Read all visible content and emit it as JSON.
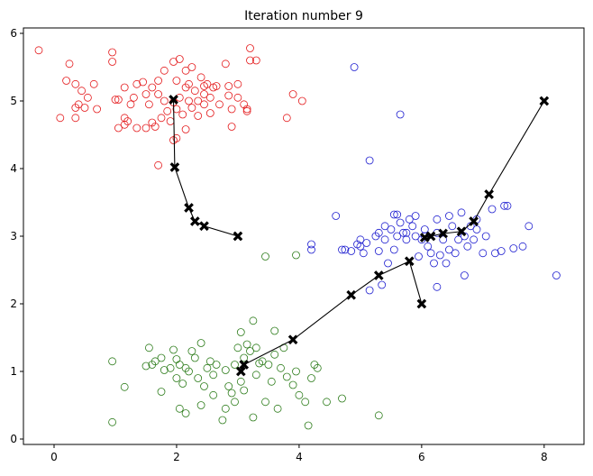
{
  "chart_data": {
    "type": "scatter",
    "title": "Iteration number 9",
    "xlabel": "",
    "ylabel": "",
    "xlim": [
      -0.5,
      8.65
    ],
    "ylim": [
      -0.08,
      6.08
    ],
    "x_ticks": [
      0,
      2,
      4,
      6,
      8
    ],
    "y_ticks": [
      0,
      1,
      2,
      3,
      4,
      5,
      6
    ],
    "grid": false,
    "legend": "none",
    "series": [
      {
        "color": "#e41a1c",
        "marker": "open-circle",
        "points": [
          [
            -0.25,
            5.75
          ],
          [
            0.25,
            5.55
          ],
          [
            0.2,
            5.3
          ],
          [
            0.35,
            5.25
          ],
          [
            0.45,
            5.15
          ],
          [
            0.55,
            5.05
          ],
          [
            0.4,
            4.95
          ],
          [
            0.35,
            4.9
          ],
          [
            0.1,
            4.75
          ],
          [
            0.35,
            4.75
          ],
          [
            0.5,
            4.9
          ],
          [
            0.65,
            5.25
          ],
          [
            0.7,
            4.88
          ],
          [
            0.95,
            5.72
          ],
          [
            0.95,
            5.58
          ],
          [
            1.0,
            5.02
          ],
          [
            1.05,
            5.02
          ],
          [
            1.05,
            4.6
          ],
          [
            1.15,
            5.2
          ],
          [
            1.15,
            4.75
          ],
          [
            1.2,
            4.7
          ],
          [
            1.25,
            4.95
          ],
          [
            1.3,
            5.05
          ],
          [
            1.35,
            5.25
          ],
          [
            1.35,
            4.6
          ],
          [
            1.45,
            5.28
          ],
          [
            1.5,
            5.1
          ],
          [
            1.55,
            4.95
          ],
          [
            1.6,
            5.2
          ],
          [
            1.6,
            4.68
          ],
          [
            1.65,
            4.62
          ],
          [
            1.7,
            5.3
          ],
          [
            1.7,
            5.1
          ],
          [
            1.75,
            4.75
          ],
          [
            1.8,
            5.45
          ],
          [
            1.8,
            5.0
          ],
          [
            1.85,
            4.85
          ],
          [
            1.9,
            4.7
          ],
          [
            1.95,
            4.98
          ],
          [
            1.95,
            5.58
          ],
          [
            2.0,
            5.3
          ],
          [
            2.0,
            4.88
          ],
          [
            2.05,
            5.62
          ],
          [
            2.05,
            5.05
          ],
          [
            2.1,
            4.8
          ],
          [
            2.15,
            4.58
          ],
          [
            2.15,
            5.45
          ],
          [
            2.2,
            5.25
          ],
          [
            2.2,
            5.0
          ],
          [
            2.25,
            4.9
          ],
          [
            2.25,
            5.5
          ],
          [
            2.3,
            5.15
          ],
          [
            2.35,
            4.78
          ],
          [
            2.4,
            5.35
          ],
          [
            2.45,
            5.22
          ],
          [
            2.45,
            4.95
          ],
          [
            2.5,
            5.25
          ],
          [
            2.55,
            5.05
          ],
          [
            2.55,
            4.82
          ],
          [
            2.6,
            5.2
          ],
          [
            2.65,
            5.22
          ],
          [
            2.7,
            4.95
          ],
          [
            2.8,
            5.55
          ],
          [
            2.85,
            5.22
          ],
          [
            2.85,
            5.08
          ],
          [
            2.9,
            4.88
          ],
          [
            2.9,
            4.62
          ],
          [
            3.0,
            5.25
          ],
          [
            3.0,
            5.05
          ],
          [
            3.1,
            4.95
          ],
          [
            3.15,
            4.85
          ],
          [
            3.15,
            4.88
          ],
          [
            3.2,
            5.6
          ],
          [
            3.2,
            5.78
          ],
          [
            3.3,
            5.6
          ],
          [
            3.8,
            4.75
          ],
          [
            3.9,
            5.1
          ],
          [
            4.05,
            5.0
          ],
          [
            1.7,
            4.05
          ],
          [
            1.95,
            4.42
          ],
          [
            2.0,
            4.45
          ],
          [
            1.5,
            4.6
          ],
          [
            1.15,
            4.65
          ],
          [
            2.35,
            5.0
          ],
          [
            2.45,
            5.1
          ],
          [
            2.15,
            5.2
          ]
        ]
      },
      {
        "color": "#1f1fd0",
        "marker": "open-circle",
        "points": [
          [
            4.9,
            5.5
          ],
          [
            5.65,
            4.8
          ],
          [
            5.15,
            4.12
          ],
          [
            4.6,
            3.3
          ],
          [
            4.2,
            2.88
          ],
          [
            4.2,
            2.8
          ],
          [
            4.7,
            2.8
          ],
          [
            4.75,
            2.8
          ],
          [
            4.85,
            2.78
          ],
          [
            4.95,
            2.88
          ],
          [
            5.0,
            2.95
          ],
          [
            5.05,
            2.75
          ],
          [
            5.1,
            2.9
          ],
          [
            5.15,
            2.2
          ],
          [
            5.25,
            3.0
          ],
          [
            5.3,
            2.78
          ],
          [
            5.35,
            2.28
          ],
          [
            5.4,
            3.15
          ],
          [
            5.4,
            2.95
          ],
          [
            5.45,
            2.6
          ],
          [
            5.5,
            3.1
          ],
          [
            5.55,
            3.32
          ],
          [
            5.55,
            2.8
          ],
          [
            5.6,
            3.0
          ],
          [
            5.6,
            3.32
          ],
          [
            5.65,
            3.2
          ],
          [
            5.7,
            3.05
          ],
          [
            5.75,
            2.95
          ],
          [
            5.8,
            3.25
          ],
          [
            5.85,
            3.15
          ],
          [
            5.9,
            3.0
          ],
          [
            5.9,
            3.3
          ],
          [
            5.95,
            2.7
          ],
          [
            6.0,
            2.95
          ],
          [
            6.05,
            3.1
          ],
          [
            6.1,
            2.85
          ],
          [
            6.15,
            2.75
          ],
          [
            6.2,
            2.6
          ],
          [
            6.25,
            3.25
          ],
          [
            6.25,
            3.05
          ],
          [
            6.3,
            2.72
          ],
          [
            6.35,
            2.95
          ],
          [
            6.4,
            2.6
          ],
          [
            6.45,
            3.3
          ],
          [
            6.5,
            3.15
          ],
          [
            6.55,
            2.75
          ],
          [
            6.6,
            2.95
          ],
          [
            6.65,
            3.35
          ],
          [
            6.7,
            3.0
          ],
          [
            6.75,
            2.85
          ],
          [
            6.8,
            3.15
          ],
          [
            6.85,
            2.95
          ],
          [
            6.9,
            3.1
          ],
          [
            7.0,
            2.75
          ],
          [
            7.05,
            3.0
          ],
          [
            7.15,
            3.4
          ],
          [
            7.2,
            2.75
          ],
          [
            7.3,
            2.78
          ],
          [
            7.35,
            3.45
          ],
          [
            7.4,
            3.45
          ],
          [
            7.5,
            2.82
          ],
          [
            7.65,
            2.85
          ],
          [
            7.75,
            3.15
          ],
          [
            8.2,
            2.42
          ],
          [
            6.7,
            2.42
          ],
          [
            6.25,
            2.25
          ],
          [
            5.0,
            2.85
          ],
          [
            5.3,
            3.05
          ],
          [
            6.9,
            3.25
          ],
          [
            6.05,
            3.0
          ],
          [
            5.75,
            3.05
          ],
          [
            6.45,
            2.8
          ]
        ]
      },
      {
        "color": "#2e7d1c",
        "marker": "open-circle",
        "points": [
          [
            0.95,
            1.15
          ],
          [
            0.95,
            0.25
          ],
          [
            1.15,
            0.77
          ],
          [
            1.5,
            1.08
          ],
          [
            1.55,
            1.35
          ],
          [
            1.6,
            1.1
          ],
          [
            1.65,
            1.15
          ],
          [
            1.75,
            0.7
          ],
          [
            1.75,
            1.2
          ],
          [
            1.8,
            1.02
          ],
          [
            1.9,
            1.05
          ],
          [
            1.95,
            1.32
          ],
          [
            2.0,
            1.18
          ],
          [
            2.05,
            0.45
          ],
          [
            2.05,
            1.1
          ],
          [
            2.1,
            0.82
          ],
          [
            2.15,
            0.38
          ],
          [
            2.15,
            1.05
          ],
          [
            2.2,
            1.0
          ],
          [
            2.25,
            1.3
          ],
          [
            2.3,
            1.2
          ],
          [
            2.35,
            0.9
          ],
          [
            2.4,
            1.42
          ],
          [
            2.45,
            0.78
          ],
          [
            2.5,
            1.05
          ],
          [
            2.55,
            1.15
          ],
          [
            2.6,
            0.95
          ],
          [
            2.65,
            1.1
          ],
          [
            2.75,
            0.28
          ],
          [
            2.8,
            0.45
          ],
          [
            2.8,
            1.02
          ],
          [
            2.85,
            0.78
          ],
          [
            2.9,
            0.68
          ],
          [
            2.95,
            1.1
          ],
          [
            3.0,
            1.35
          ],
          [
            3.05,
            0.85
          ],
          [
            3.1,
            1.2
          ],
          [
            3.1,
            0.72
          ],
          [
            3.15,
            1.4
          ],
          [
            3.2,
            1.3
          ],
          [
            3.25,
            0.32
          ],
          [
            3.25,
            1.75
          ],
          [
            3.3,
            0.95
          ],
          [
            3.35,
            1.12
          ],
          [
            3.4,
            1.15
          ],
          [
            3.45,
            0.55
          ],
          [
            3.5,
            1.1
          ],
          [
            3.55,
            0.85
          ],
          [
            3.6,
            1.25
          ],
          [
            3.65,
            0.45
          ],
          [
            3.7,
            1.05
          ],
          [
            3.75,
            1.35
          ],
          [
            3.8,
            0.92
          ],
          [
            3.9,
            0.8
          ],
          [
            3.95,
            1.0
          ],
          [
            4.0,
            0.65
          ],
          [
            4.1,
            0.55
          ],
          [
            4.15,
            0.2
          ],
          [
            4.2,
            0.9
          ],
          [
            4.25,
            1.1
          ],
          [
            4.3,
            1.05
          ],
          [
            4.45,
            0.55
          ],
          [
            4.7,
            0.6
          ],
          [
            5.3,
            0.35
          ],
          [
            3.45,
            2.7
          ],
          [
            3.95,
            2.72
          ],
          [
            2.95,
            0.55
          ],
          [
            3.05,
            1.58
          ],
          [
            3.3,
            1.35
          ],
          [
            3.6,
            1.6
          ],
          [
            2.6,
            0.65
          ],
          [
            2.0,
            0.9
          ],
          [
            2.4,
            0.5
          ]
        ]
      }
    ],
    "centroid_paths": [
      {
        "points": [
          [
            3.0,
            3.0
          ],
          [
            2.45,
            3.15
          ],
          [
            2.3,
            3.22
          ],
          [
            2.2,
            3.42
          ],
          [
            1.97,
            4.02
          ],
          [
            1.95,
            5.02
          ]
        ]
      },
      {
        "points": [
          [
            6.0,
            2.0
          ],
          [
            5.8,
            2.63
          ],
          [
            5.3,
            2.42
          ],
          [
            4.85,
            2.13
          ],
          [
            3.9,
            1.47
          ],
          [
            3.1,
            1.1
          ],
          [
            3.05,
            1.0
          ]
        ]
      },
      {
        "points": [
          [
            8.0,
            5.0
          ],
          [
            7.1,
            3.62
          ],
          [
            6.85,
            3.22
          ],
          [
            6.65,
            3.07
          ],
          [
            6.35,
            3.04
          ],
          [
            6.15,
            3.0
          ],
          [
            6.05,
            2.98
          ]
        ]
      }
    ]
  }
}
